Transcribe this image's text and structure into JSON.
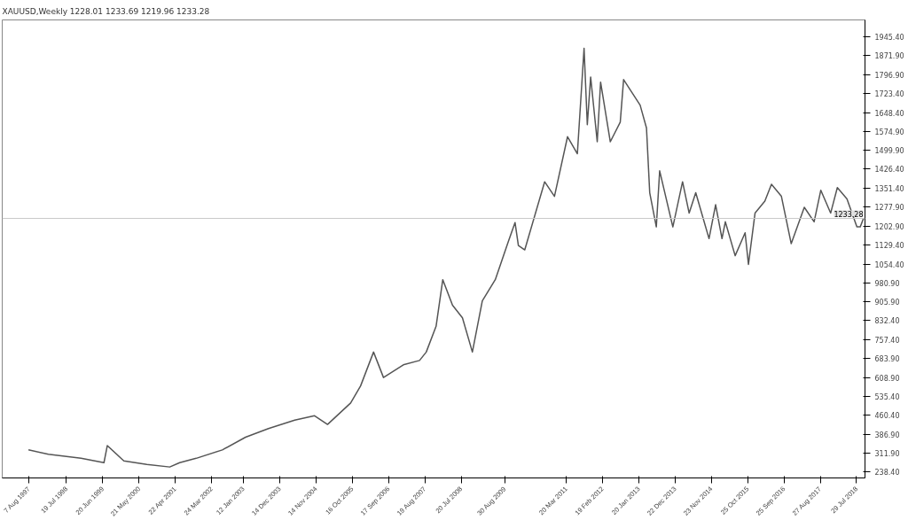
{
  "chart_data": {
    "type": "line",
    "title": "XAUUSD,Weekly 1228.01 1233.69 1219.96 1233.28",
    "x": [
      "1997-08",
      "1998-02",
      "1998-12",
      "1999-07",
      "1999-08",
      "2000-01",
      "2000-08",
      "2001-03",
      "2001-06",
      "2001-11",
      "2002-07",
      "2003-02",
      "2003-09",
      "2004-05",
      "2004-11",
      "2005-03",
      "2005-10",
      "2006-01",
      "2006-05",
      "2006-08",
      "2007-02",
      "2007-07",
      "2007-09",
      "2007-12",
      "2008-02",
      "2008-05",
      "2008-08",
      "2008-11",
      "2009-02",
      "2009-06",
      "2009-10",
      "2009-12",
      "2010-01",
      "2010-03",
      "2010-09",
      "2010-12",
      "2011-04",
      "2011-07",
      "2011-09",
      "2011-10",
      "2011-11",
      "2012-01",
      "2012-02",
      "2012-05",
      "2012-08",
      "2012-09",
      "2013-02",
      "2013-04",
      "2013-05",
      "2013-07",
      "2013-08",
      "2013-12",
      "2014-03",
      "2014-05",
      "2014-07",
      "2014-11",
      "2015-01",
      "2015-03",
      "2015-04",
      "2015-07",
      "2015-10",
      "2015-11",
      "2016-01",
      "2016-04",
      "2016-06",
      "2016-09",
      "2016-12",
      "2017-04",
      "2017-07",
      "2017-09",
      "2017-12",
      "2018-02",
      "2018-05",
      "2018-08",
      "2018-09",
      "2018-10"
    ],
    "series": [
      {
        "color": "#555555",
        "values": [
          325,
          308,
          292,
          275,
          342,
          282,
          268,
          258,
          275,
          292,
          325,
          375,
          409,
          442,
          459,
          425,
          509,
          576,
          709,
          609,
          659,
          676,
          709,
          810,
          993,
          893,
          843,
          709,
          910,
          993,
          1144,
          1217,
          1127,
          1110,
          1377,
          1320,
          1554,
          1487,
          1901,
          1601,
          1788,
          1534,
          1768,
          1534,
          1611,
          1778,
          1678,
          1588,
          1334,
          1200,
          1420,
          1200,
          1377,
          1254,
          1334,
          1154,
          1287,
          1154,
          1220,
          1087,
          1177,
          1053,
          1254,
          1301,
          1367,
          1320,
          1134,
          1277,
          1220,
          1344,
          1254,
          1354,
          1310,
          1200,
          1200,
          1233
        ]
      }
    ],
    "xlim": [
      "1996-12-01",
      "2018-10-15"
    ],
    "ylim": [
      215,
      2012
    ],
    "yticks": [
      {
        "value": 238.4,
        "label": "238.40"
      },
      {
        "value": 311.9,
        "label": "311.90"
      },
      {
        "value": 386.9,
        "label": "386.90"
      },
      {
        "value": 460.4,
        "label": "460.40"
      },
      {
        "value": 535.4,
        "label": "535.40"
      },
      {
        "value": 608.9,
        "label": "608.90"
      },
      {
        "value": 683.9,
        "label": "683.90"
      },
      {
        "value": 757.4,
        "label": "757.40"
      },
      {
        "value": 832.4,
        "label": "832.40"
      },
      {
        "value": 905.9,
        "label": "905.90"
      },
      {
        "value": 980.9,
        "label": "980.90"
      },
      {
        "value": 1054.4,
        "label": "1054.40"
      },
      {
        "value": 1129.4,
        "label": "1129.40"
      },
      {
        "value": 1202.9,
        "label": "1202.90"
      },
      {
        "value": 1277.9,
        "label": "1277.90"
      },
      {
        "value": 1351.4,
        "label": "1351.40"
      },
      {
        "value": 1426.4,
        "label": "1426.40"
      },
      {
        "value": 1499.9,
        "label": "1499.90"
      },
      {
        "value": 1574.9,
        "label": "1574.90"
      },
      {
        "value": 1648.4,
        "label": "1648.40"
      },
      {
        "value": 1723.4,
        "label": "1723.40"
      },
      {
        "value": 1796.9,
        "label": "1796.90"
      },
      {
        "value": 1871.9,
        "label": "1871.90"
      },
      {
        "value": 1945.4,
        "label": "1945.40"
      }
    ],
    "xticks": [
      {
        "value": "1997-08-07",
        "label": "7 Aug 1997"
      },
      {
        "value": "1998-07-19",
        "label": "19 Jul 1998"
      },
      {
        "value": "1999-06-20",
        "label": "20 Jun 1999"
      },
      {
        "value": "2000-05-21",
        "label": "21 May 2000"
      },
      {
        "value": "2001-04-22",
        "label": "22 Apr 2001"
      },
      {
        "value": "2002-03-24",
        "label": "24 Mar 2002"
      },
      {
        "value": "2003-01-12",
        "label": "12 Jan 2003"
      },
      {
        "value": "2003-12-14",
        "label": "14 Dec 2003"
      },
      {
        "value": "2004-11-14",
        "label": "14 Nov 2004"
      },
      {
        "value": "2005-10-16",
        "label": "16 Oct 2005"
      },
      {
        "value": "2006-09-17",
        "label": "17 Sep 2006"
      },
      {
        "value": "2007-08-19",
        "label": "19 Aug 2007"
      },
      {
        "value": "2008-07-20",
        "label": "20 Jul 2008"
      },
      {
        "value": "2009-08-30",
        "label": "30 Aug 2009"
      },
      {
        "value": "2011-03-20",
        "label": "20 Mar 2011"
      },
      {
        "value": "2012-02-19",
        "label": "19 Feb 2012"
      },
      {
        "value": "2013-01-20",
        "label": "20 Jan 2013"
      },
      {
        "value": "2013-12-22",
        "label": "22 Dec 2013"
      },
      {
        "value": "2014-11-23",
        "label": "23 Nov 2014"
      },
      {
        "value": "2015-10-25",
        "label": "25 Oct 2015"
      },
      {
        "value": "2016-09-25",
        "label": "25 Sep 2016"
      },
      {
        "value": "2017-08-27",
        "label": "27 Aug 2017"
      },
      {
        "value": "2018-07-29",
        "label": "29 Jul 2018"
      }
    ],
    "ref_lines": [
      {
        "axis": "y",
        "value": 1233.28,
        "label": "1233.28",
        "color": "#c8c8c8"
      }
    ],
    "marker": "none",
    "line_style": "solid"
  }
}
